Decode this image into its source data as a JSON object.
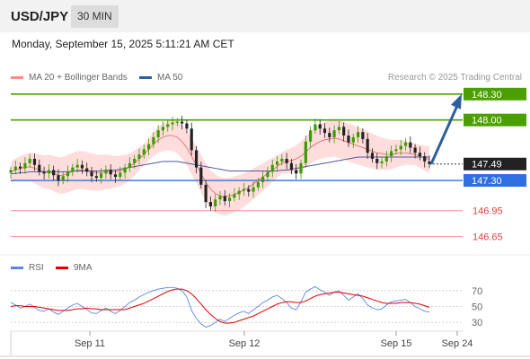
{
  "header": {
    "pair": "USD/JPY",
    "interval": "30 MIN"
  },
  "datetime": "Monday, September 15, 2025 5:11:21 AM CET",
  "legend": {
    "ma20_label": "MA 20 + Bollinger Bands",
    "ma50_label": "MA 50",
    "credit": "Research © 2025 Trading Central",
    "rsi_label": "RSI",
    "rsi_ma_label": "9MA"
  },
  "colors": {
    "resistance": "#4ba000",
    "current": "#222222",
    "pivot": "#2f6fe0",
    "support": "#ff9090",
    "candle_up": "#3c9a00",
    "candle_down": "#222222",
    "bollinger": "#ffd2d2",
    "ma20": "#e06060",
    "ma50": "#4a5aa0",
    "rsi": "#5a88e0",
    "rsi_ma": "#e00000",
    "arrow": "#2d5fa0"
  },
  "chart_data": [
    {
      "type": "candlestick",
      "title": "USD/JPY",
      "interval": "30 MIN",
      "ylim": [
        146.5,
        148.35
      ],
      "x_ticks": [
        "Sep 11",
        "Sep 12",
        "Sep 15",
        "Sep 24"
      ],
      "levels": [
        {
          "value": 148.3,
          "label": "148.30",
          "kind": "resistance"
        },
        {
          "value": 148.0,
          "label": "148.00",
          "kind": "resistance"
        },
        {
          "value": 147.49,
          "label": "147.49",
          "kind": "current"
        },
        {
          "value": 147.3,
          "label": "147.30",
          "kind": "pivot"
        },
        {
          "value": 146.95,
          "label": "146.95",
          "kind": "support"
        },
        {
          "value": 146.65,
          "label": "146.65",
          "kind": "support"
        }
      ],
      "series": [
        {
          "name": "Price",
          "values": [
            147.42,
            147.46,
            147.44,
            147.5,
            147.55,
            147.48,
            147.4,
            147.38,
            147.42,
            147.36,
            147.3,
            147.35,
            147.4,
            147.45,
            147.48,
            147.44,
            147.4,
            147.35,
            147.33,
            147.38,
            147.42,
            147.37,
            147.34,
            147.39,
            147.45,
            147.5,
            147.55,
            147.6,
            147.66,
            147.72,
            147.8,
            147.88,
            147.92,
            147.95,
            147.97,
            147.98,
            147.96,
            147.9,
            147.65,
            147.45,
            147.25,
            147.05,
            147.0,
            147.08,
            147.12,
            147.06,
            147.1,
            147.14,
            147.18,
            147.2,
            147.17,
            147.22,
            147.28,
            147.34,
            147.4,
            147.48,
            147.52,
            147.55,
            147.5,
            147.42,
            147.38,
            147.5,
            147.75,
            147.88,
            147.95,
            147.9,
            147.85,
            147.8,
            147.88,
            147.92,
            147.82,
            147.74,
            147.8,
            147.86,
            147.78,
            147.62,
            147.55,
            147.5,
            147.52,
            147.58,
            147.64,
            147.66,
            147.7,
            147.74,
            147.68,
            147.62,
            147.58,
            147.52,
            147.49
          ]
        },
        {
          "name": "MA 20",
          "values": [
            147.4,
            147.42,
            147.44,
            147.45,
            147.46,
            147.44,
            147.42,
            147.4,
            147.4,
            147.38,
            147.36,
            147.36,
            147.38,
            147.4,
            147.42,
            147.42,
            147.41,
            147.4,
            147.39,
            147.39,
            147.4,
            147.4,
            147.4,
            147.41,
            147.43,
            147.46,
            147.5,
            147.55,
            147.6,
            147.66,
            147.72,
            147.77,
            147.8,
            147.82,
            147.82,
            147.8,
            147.75,
            147.68,
            147.58,
            147.48,
            147.38,
            147.28,
            147.2,
            147.15,
            147.12,
            147.11,
            147.12,
            147.14,
            147.16,
            147.19,
            147.22,
            147.26,
            147.3,
            147.34,
            147.38,
            147.42,
            147.46,
            147.5,
            147.52,
            147.53,
            147.55,
            147.58,
            147.63,
            147.68,
            147.72,
            147.75,
            147.77,
            147.78,
            147.79,
            147.78,
            147.76,
            147.74,
            147.72,
            147.7,
            147.68,
            147.66,
            147.64,
            147.62,
            147.61,
            147.6,
            147.6,
            147.61,
            147.62,
            147.62,
            147.61,
            147.6,
            147.58,
            147.56,
            147.54
          ]
        },
        {
          "name": "MA 50",
          "values": [
            147.38,
            147.38,
            147.39,
            147.39,
            147.4,
            147.4,
            147.4,
            147.4,
            147.4,
            147.4,
            147.4,
            147.4,
            147.4,
            147.41,
            147.41,
            147.41,
            147.41,
            147.41,
            147.41,
            147.41,
            147.42,
            147.42,
            147.42,
            147.43,
            147.44,
            147.45,
            147.46,
            147.47,
            147.48,
            147.49,
            147.5,
            147.51,
            147.52,
            147.52,
            147.52,
            147.52,
            147.51,
            147.5,
            147.49,
            147.48,
            147.47,
            147.46,
            147.45,
            147.44,
            147.43,
            147.42,
            147.41,
            147.41,
            147.41,
            147.41,
            147.41,
            147.41,
            147.41,
            147.41,
            147.41,
            147.41,
            147.41,
            147.42,
            147.42,
            147.43,
            147.44,
            147.45,
            147.46,
            147.47,
            147.48,
            147.49,
            147.5,
            147.51,
            147.52,
            147.53,
            147.54,
            147.55,
            147.56,
            147.57,
            147.57,
            147.57,
            147.57,
            147.57,
            147.57,
            147.57,
            147.57,
            147.57,
            147.57,
            147.57,
            147.57,
            147.57,
            147.57,
            147.57,
            147.57
          ]
        }
      ],
      "bollinger_width": 0.22,
      "projection": {
        "from": 147.49,
        "to": 148.3
      }
    },
    {
      "type": "line",
      "title": "RSI",
      "ylim": [
        20,
        80
      ],
      "y_ticks": [
        70,
        50,
        30
      ],
      "series": [
        {
          "name": "RSI",
          "values": [
            55,
            52,
            48,
            50,
            53,
            49,
            45,
            44,
            47,
            43,
            40,
            44,
            48,
            52,
            54,
            50,
            46,
            42,
            41,
            45,
            48,
            44,
            41,
            45,
            50,
            55,
            58,
            62,
            65,
            68,
            70,
            72,
            73,
            74,
            74,
            73,
            70,
            62,
            45,
            35,
            28,
            24,
            26,
            30,
            34,
            31,
            35,
            39,
            42,
            44,
            41,
            46,
            50,
            55,
            58,
            62,
            64,
            60,
            55,
            48,
            46,
            56,
            68,
            72,
            75,
            71,
            68,
            64,
            68,
            70,
            64,
            58,
            62,
            66,
            60,
            52,
            48,
            46,
            47,
            52,
            56,
            57,
            58,
            59,
            55,
            50,
            47,
            44,
            43
          ]
        },
        {
          "name": "9MA",
          "values": [
            50,
            51,
            51,
            50,
            50,
            50,
            49,
            48,
            47,
            46,
            45,
            45,
            45,
            46,
            47,
            47,
            48,
            47,
            47,
            46,
            46,
            46,
            46,
            46,
            46,
            48,
            50,
            52,
            54,
            57,
            60,
            63,
            66,
            69,
            71,
            72,
            72,
            70,
            66,
            60,
            53,
            46,
            40,
            35,
            31,
            29,
            29,
            30,
            32,
            34,
            36,
            38,
            41,
            44,
            47,
            50,
            53,
            55,
            56,
            56,
            55,
            55,
            57,
            60,
            63,
            65,
            66,
            67,
            68,
            68,
            67,
            66,
            65,
            64,
            63,
            61,
            59,
            57,
            55,
            54,
            54,
            54,
            55,
            55,
            55,
            54,
            53,
            51,
            49
          ]
        }
      ]
    }
  ]
}
